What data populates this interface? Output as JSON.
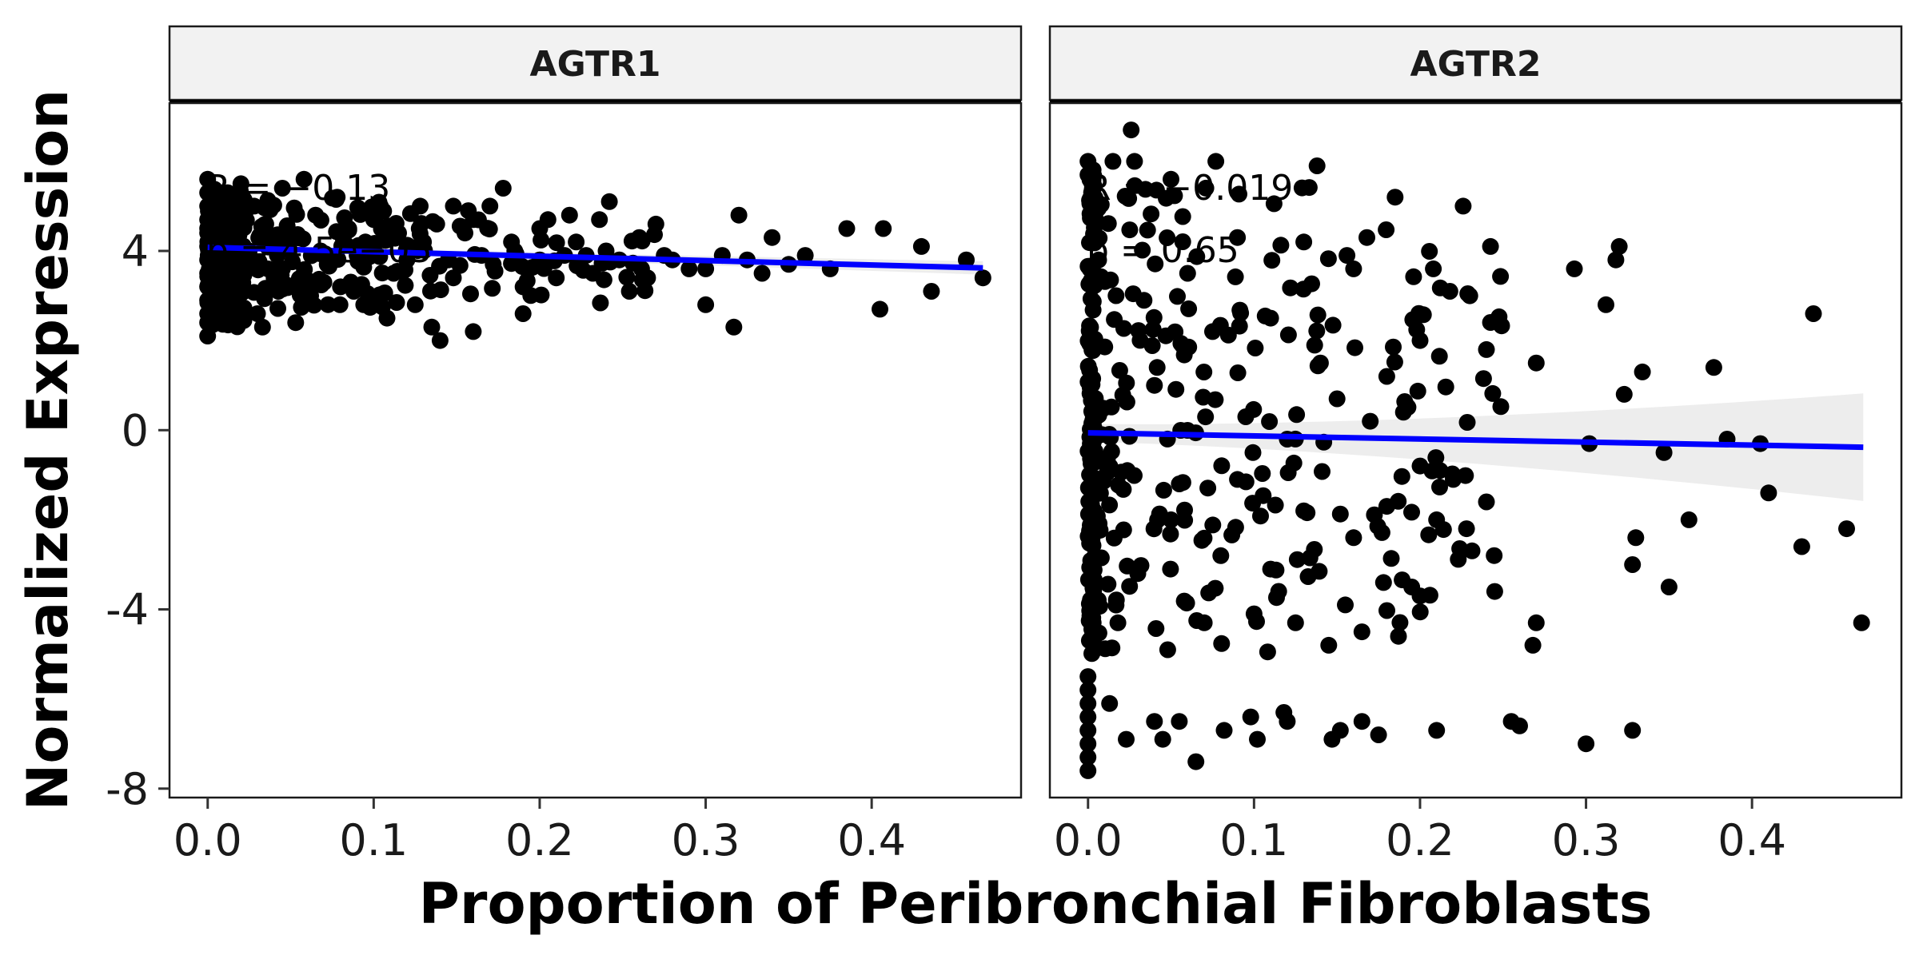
{
  "chart_data": {
    "type": "scatter",
    "xlabel": "Proportion of Peribronchial Fibroblasts",
    "ylabel": "Normalized Expression",
    "xlim": [
      -0.023,
      0.49
    ],
    "ylim": [
      -8.2,
      7.3
    ],
    "x_ticks": [
      0.0,
      0.1,
      0.2,
      0.3,
      0.4
    ],
    "x_tick_labels": [
      "0.0",
      "0.1",
      "0.2",
      "0.3",
      "0.4"
    ],
    "y_ticks": [
      -8,
      -4,
      0,
      4
    ],
    "y_tick_labels": [
      "-8",
      "-4",
      "0",
      "4"
    ],
    "grid": false,
    "point_color": "#000000",
    "line_color": "#0000ff",
    "ribbon_color": "#bdbdbd",
    "strip_fill": "#f2f2f2",
    "panels": [
      {
        "strip": "AGTR1",
        "stat_r": "R = −0.13",
        "stat_p": "p = 4.5e−05",
        "fit": {
          "x0": 0.0,
          "y0": 4.08,
          "x1": 0.467,
          "y1": 3.62
        },
        "ribbon_halfwidth": [
          0.06,
          0.15
        ],
        "anchors": [
          [
            0.0,
            5.6
          ],
          [
            0.0,
            5.3
          ],
          [
            0.0,
            5.0
          ],
          [
            0.0,
            4.7
          ],
          [
            0.0,
            4.4
          ],
          [
            0.0,
            4.1
          ],
          [
            0.0,
            3.8
          ],
          [
            0.0,
            3.5
          ],
          [
            0.0,
            3.2
          ],
          [
            0.0,
            2.9
          ],
          [
            0.0,
            2.6
          ],
          [
            0.0,
            2.4
          ],
          [
            0.0,
            2.1
          ],
          [
            0.058,
            5.6
          ],
          [
            0.02,
            5.5
          ],
          [
            0.045,
            5.4
          ],
          [
            0.012,
            5.3
          ],
          [
            0.078,
            5.2
          ],
          [
            0.104,
            5.0
          ],
          [
            0.128,
            5.0
          ],
          [
            0.148,
            5.0
          ],
          [
            0.17,
            5.0
          ],
          [
            0.178,
            5.4
          ],
          [
            0.242,
            5.1
          ],
          [
            0.157,
            4.9
          ],
          [
            0.205,
            4.7
          ],
          [
            0.218,
            4.8
          ],
          [
            0.236,
            4.7
          ],
          [
            0.27,
            4.6
          ],
          [
            0.32,
            4.8
          ],
          [
            0.385,
            4.5
          ],
          [
            0.407,
            4.5
          ],
          [
            0.43,
            4.1
          ],
          [
            0.457,
            3.8
          ],
          [
            0.467,
            3.4
          ],
          [
            0.36,
            3.9
          ],
          [
            0.34,
            4.3
          ],
          [
            0.31,
            3.9
          ],
          [
            0.3,
            3.6
          ],
          [
            0.28,
            3.8
          ],
          [
            0.26,
            4.3
          ],
          [
            0.265,
            3.4
          ],
          [
            0.254,
            3.1
          ],
          [
            0.232,
            3.5
          ],
          [
            0.2,
            3.8
          ],
          [
            0.19,
            2.6
          ],
          [
            0.19,
            3.2
          ],
          [
            0.16,
            2.2
          ],
          [
            0.14,
            2.0
          ],
          [
            0.135,
            2.3
          ],
          [
            0.125,
            2.8
          ],
          [
            0.108,
            2.5
          ],
          [
            0.094,
            2.8
          ],
          [
            0.088,
            3.1
          ],
          [
            0.07,
            3.3
          ],
          [
            0.053,
            2.4
          ],
          [
            0.033,
            2.3
          ],
          [
            0.03,
            2.6
          ],
          [
            0.015,
            2.7
          ],
          [
            0.022,
            3.1
          ],
          [
            0.062,
            3.0
          ],
          [
            0.08,
            3.2
          ],
          [
            0.112,
            3.5
          ],
          [
            0.148,
            3.4
          ],
          [
            0.165,
            3.9
          ],
          [
            0.183,
            4.2
          ],
          [
            0.222,
            4.2
          ],
          [
            0.248,
            3.8
          ],
          [
            0.29,
            3.6
          ],
          [
            0.3,
            2.8
          ],
          [
            0.317,
            2.3
          ],
          [
            0.334,
            3.5
          ],
          [
            0.375,
            3.6
          ],
          [
            0.405,
            2.7
          ],
          [
            0.436,
            3.1
          ],
          [
            0.007,
            4.3
          ],
          [
            0.015,
            3.9
          ],
          [
            0.025,
            4.0
          ],
          [
            0.035,
            4.6
          ],
          [
            0.045,
            3.6
          ],
          [
            0.05,
            4.3
          ],
          [
            0.065,
            4.8
          ],
          [
            0.072,
            3.7
          ],
          [
            0.085,
            4.5
          ],
          [
            0.095,
            4.2
          ],
          [
            0.115,
            4.4
          ],
          [
            0.12,
            3.8
          ],
          [
            0.138,
            4.6
          ],
          [
            0.155,
            4.4
          ],
          [
            0.172,
            3.7
          ],
          [
            0.185,
            4.0
          ],
          [
            0.21,
            3.4
          ],
          [
            0.228,
            3.9
          ],
          [
            0.004,
            3.7
          ],
          [
            0.01,
            4.8
          ],
          [
            0.028,
            5.0
          ],
          [
            0.04,
            3.4
          ],
          [
            0.068,
            4.0
          ],
          [
            0.09,
            3.9
          ],
          [
            0.1,
            4.7
          ],
          [
            0.13,
            4.2
          ],
          [
            0.145,
            3.8
          ],
          [
            0.16,
            4.7
          ],
          [
            0.2,
            4.5
          ],
          [
            0.215,
            3.9
          ],
          [
            0.24,
            4.0
          ],
          [
            0.275,
            3.9
          ],
          [
            0.325,
            3.8
          ],
          [
            0.35,
            3.7
          ]
        ],
        "jitter": [
          {
            "count": 170,
            "x": [
              0.0,
              0.12
            ],
            "y": [
              2.7,
              5.2
            ],
            "skew": 2.0
          },
          {
            "count": 80,
            "x": [
              0.0,
              0.022
            ],
            "y": [
              2.3,
              5.4
            ],
            "skew": 1.0
          },
          {
            "count": 55,
            "x": [
              0.1,
              0.27
            ],
            "y": [
              2.8,
              4.9
            ],
            "skew": 1.3
          }
        ]
      },
      {
        "strip": "AGTR2",
        "stat_r": "R = −0.019",
        "stat_p": "p = 0.65",
        "fit": {
          "x0": 0.0,
          "y0": -0.06,
          "x1": 0.467,
          "y1": -0.38
        },
        "ribbon_halfwidth": [
          0.2,
          1.2
        ],
        "anchors": [
          [
            0.026,
            6.7
          ],
          [
            0.0,
            6.0
          ],
          [
            0.015,
            6.0
          ],
          [
            0.028,
            6.0
          ],
          [
            0.0,
            5.7
          ],
          [
            0.077,
            6.0
          ],
          [
            0.138,
            5.9
          ],
          [
            0.05,
            5.6
          ],
          [
            0.185,
            5.2
          ],
          [
            0.226,
            5.0
          ],
          [
            0.168,
            4.3
          ],
          [
            0.13,
            4.2
          ],
          [
            0.156,
            3.9
          ],
          [
            0.16,
            3.6
          ],
          [
            0.208,
            3.6
          ],
          [
            0.218,
            3.1
          ],
          [
            0.23,
            3.0
          ],
          [
            0.293,
            3.6
          ],
          [
            0.32,
            4.1
          ],
          [
            0.318,
            3.8
          ],
          [
            0.312,
            2.8
          ],
          [
            0.437,
            2.6
          ],
          [
            0.27,
            1.5
          ],
          [
            0.334,
            1.3
          ],
          [
            0.377,
            1.4
          ],
          [
            0.323,
            0.8
          ],
          [
            0.302,
            -0.3
          ],
          [
            0.347,
            -0.5
          ],
          [
            0.385,
            -0.2
          ],
          [
            0.405,
            -0.3
          ],
          [
            0.41,
            -1.4
          ],
          [
            0.362,
            -2.0
          ],
          [
            0.33,
            -2.4
          ],
          [
            0.328,
            -3.0
          ],
          [
            0.35,
            -3.5
          ],
          [
            0.43,
            -2.6
          ],
          [
            0.457,
            -2.2
          ],
          [
            0.466,
            -4.3
          ],
          [
            0.27,
            -4.3
          ],
          [
            0.268,
            -4.8
          ],
          [
            0.245,
            -3.6
          ],
          [
            0.228,
            -2.2
          ],
          [
            0.22,
            -1.1
          ],
          [
            0.212,
            -0.9
          ],
          [
            0.2,
            -3.7
          ],
          [
            0.195,
            -3.5
          ],
          [
            0.187,
            -4.6
          ],
          [
            0.178,
            -3.4
          ],
          [
            0.165,
            -4.5
          ],
          [
            0.155,
            -3.9
          ],
          [
            0.145,
            -4.8
          ],
          [
            0.125,
            -4.3
          ],
          [
            0.1,
            -4.1
          ],
          [
            0.07,
            -4.3
          ],
          [
            0.048,
            -4.9
          ],
          [
            0.018,
            -4.3
          ],
          [
            0.013,
            -6.1
          ],
          [
            0.023,
            -6.9
          ],
          [
            0.04,
            -6.5
          ],
          [
            0.045,
            -6.9
          ],
          [
            0.055,
            -6.5
          ],
          [
            0.065,
            -7.4
          ],
          [
            0.082,
            -6.7
          ],
          [
            0.098,
            -6.4
          ],
          [
            0.102,
            -6.9
          ],
          [
            0.118,
            -6.3
          ],
          [
            0.12,
            -6.5
          ],
          [
            0.147,
            -6.9
          ],
          [
            0.152,
            -6.7
          ],
          [
            0.165,
            -6.5
          ],
          [
            0.175,
            -6.8
          ],
          [
            0.21,
            -6.7
          ],
          [
            0.255,
            -6.5
          ],
          [
            0.26,
            -6.6
          ],
          [
            0.3,
            -7.0
          ],
          [
            0.328,
            -6.7
          ],
          [
            0.06,
            3.5
          ],
          [
            0.09,
            4.3
          ],
          [
            0.11,
            2.5
          ],
          [
            0.14,
            1.5
          ],
          [
            0.18,
            1.2
          ],
          [
            0.2,
            2.0
          ],
          [
            0.24,
            1.8
          ],
          [
            0.19,
            0.4
          ],
          [
            0.17,
            0.2
          ],
          [
            0.13,
            -1.8
          ],
          [
            0.16,
            -2.4
          ],
          [
            0.18,
            -1.7
          ],
          [
            0.2,
            -0.8
          ],
          [
            0.08,
            -2.8
          ],
          [
            0.05,
            -2.0
          ],
          [
            0.11,
            -3.1
          ],
          [
            0.09,
            -1.1
          ],
          [
            0.04,
            1.0
          ],
          [
            0.03,
            -3.2
          ],
          [
            0.12,
            -0.2
          ],
          [
            0.095,
            0.3
          ],
          [
            0.15,
            0.7
          ],
          [
            0.075,
            2.2
          ],
          [
            0.055,
            -1.2
          ],
          [
            0.21,
            -2.0
          ],
          [
            0.24,
            -1.6
          ],
          [
            0.0,
            -7.6
          ],
          [
            0.0,
            -7.3
          ],
          [
            0.0,
            -7.0
          ],
          [
            0.0,
            -6.7
          ],
          [
            0.0,
            -6.4
          ],
          [
            0.0,
            -6.1
          ],
          [
            0.0,
            -5.8
          ],
          [
            0.0,
            -5.5
          ]
        ],
        "jitter": [
          {
            "count": 130,
            "x": [
              0.0,
              0.004
            ],
            "y": [
              -5.0,
              6.0
            ],
            "skew": 1.0
          },
          {
            "count": 170,
            "x": [
              0.004,
              0.14
            ],
            "y": [
              -5.0,
              5.5
            ],
            "skew": 1.7
          },
          {
            "count": 60,
            "x": [
              0.12,
              0.25
            ],
            "y": [
              -4.5,
              4.5
            ],
            "skew": 1.0
          }
        ]
      }
    ]
  }
}
